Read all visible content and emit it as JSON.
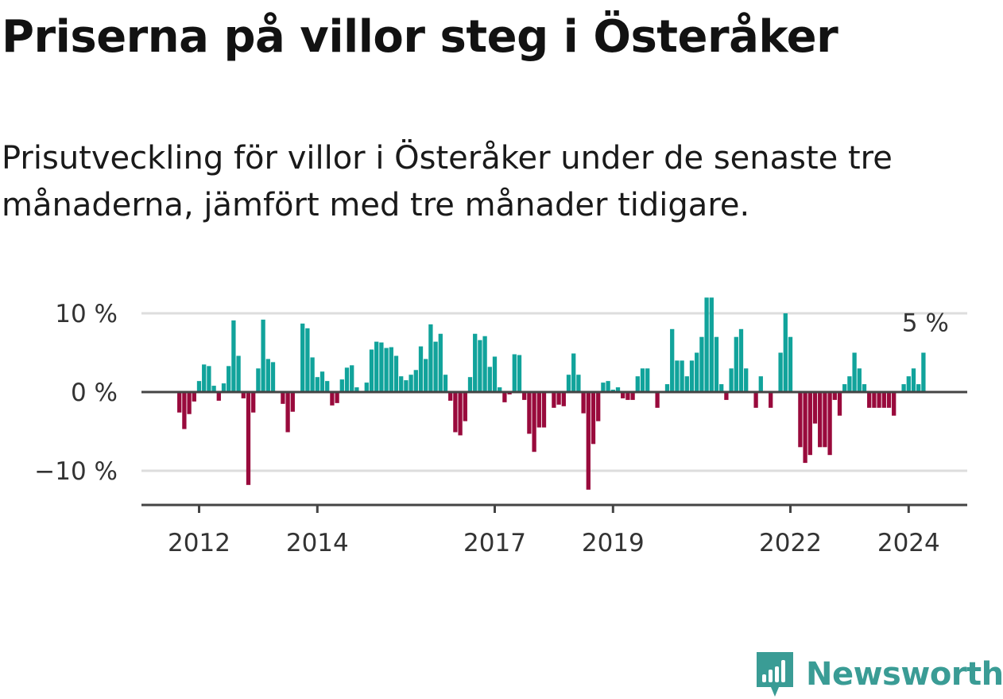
{
  "title": "Priserna på villor steg i Österåker",
  "subtitle": "Prisutveckling för villor i Österåker under de senaste tre månaderna, jämfört med tre månader tidigare.",
  "brand": {
    "name": "Newsworthy",
    "icon": "newsworthy-logo-icon",
    "color": "#3a9c95"
  },
  "colors": {
    "positive": "#11a39b",
    "negative": "#990a3c",
    "grid": "#dddddd",
    "axis": "#444444"
  },
  "chart_data": {
    "type": "bar",
    "title": "Priserna på villor steg i Österåker",
    "xlabel": "",
    "ylabel": "",
    "ylim": [
      -14.5,
      12.5
    ],
    "y_ticks": [
      {
        "value": 10,
        "label": "10 %"
      },
      {
        "value": 0,
        "label": "0 %"
      },
      {
        "value": -10,
        "label": "−10 %"
      }
    ],
    "x_ticks": [
      {
        "label": "2012",
        "index": 4
      },
      {
        "label": "2014",
        "index": 28
      },
      {
        "label": "2017",
        "index": 64
      },
      {
        "label": "2019",
        "index": 88
      },
      {
        "label": "2022",
        "index": 124
      },
      {
        "label": "2024",
        "index": 148
      }
    ],
    "period": "monthly, ca 2011-09 till 2024-07",
    "values": [
      -2.6,
      -4.7,
      -2.8,
      -1.2,
      1.4,
      3.5,
      3.3,
      0.8,
      -1.1,
      1.1,
      3.3,
      9.1,
      4.6,
      -0.8,
      -11.8,
      -2.6,
      3.0,
      9.2,
      4.2,
      3.8,
      0.0,
      -1.5,
      -5.1,
      -2.5,
      0.0,
      8.7,
      8.1,
      4.4,
      1.9,
      2.6,
      1.4,
      -1.7,
      -1.4,
      1.6,
      3.1,
      3.4,
      0.6,
      0.0,
      1.2,
      5.4,
      6.4,
      6.3,
      5.6,
      5.7,
      4.6,
      2.0,
      1.5,
      2.2,
      2.8,
      5.8,
      4.2,
      8.6,
      6.4,
      7.4,
      2.2,
      -1.1,
      -5.1,
      -5.5,
      -3.7,
      1.9,
      7.4,
      6.6,
      7.1,
      3.2,
      4.5,
      0.6,
      -1.3,
      -0.3,
      4.8,
      4.7,
      -1.0,
      -5.3,
      -7.6,
      -4.5,
      -4.5,
      0.0,
      -2.0,
      -1.6,
      -1.8,
      2.2,
      4.9,
      2.2,
      -2.7,
      -12.4,
      -6.6,
      -3.7,
      1.2,
      1.4,
      0.3,
      0.6,
      -0.8,
      -1.0,
      -1.0,
      2.0,
      3.0,
      3.0,
      0.0,
      -2.0,
      0.0,
      1.0,
      8.0,
      4.0,
      4.0,
      2.0,
      4.0,
      5.0,
      7.0,
      12.0,
      12.0,
      7.0,
      1.0,
      -1.0,
      3.0,
      7.0,
      8.0,
      3.0,
      0.0,
      -2.0,
      2.0,
      0.0,
      -2.0,
      0.0,
      5.0,
      10.0,
      7.0,
      0.0,
      -7.0,
      -9.0,
      -8.0,
      -4.0,
      -7.0,
      -7.0,
      -8.0,
      -1.0,
      -3.0,
      1.0,
      2.0,
      5.0,
      3.0,
      1.0,
      -2.0,
      -2.0,
      -2.0,
      -2.0,
      -2.0,
      -3.0,
      0.0,
      1.0,
      2.0,
      3.0,
      1.0,
      5.0
    ],
    "last_value_label": "5 %"
  }
}
